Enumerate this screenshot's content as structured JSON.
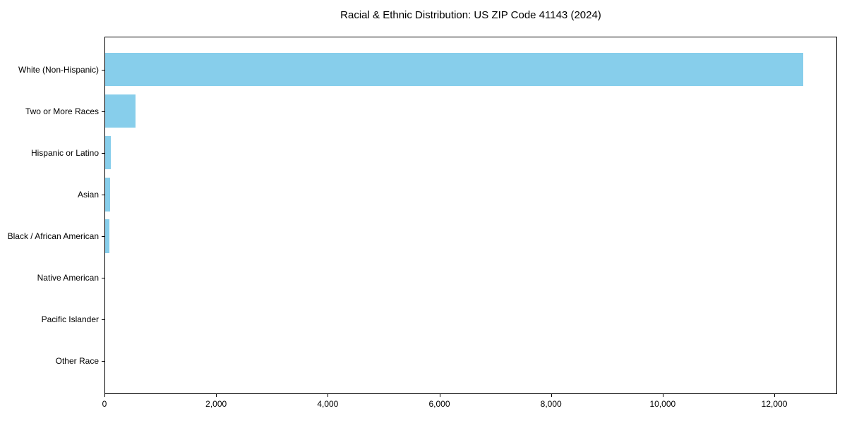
{
  "chart_data": {
    "type": "bar",
    "orientation": "horizontal",
    "title": "Racial & Ethnic Distribution: US ZIP Code 41143 (2024)",
    "xlabel": "",
    "ylabel": "",
    "categories": [
      "White (Non-Hispanic)",
      "Two or More Races",
      "Hispanic or Latino",
      "Asian",
      "Black / African American",
      "Native American",
      "Pacific Islander",
      "Other Race"
    ],
    "values": [
      12500,
      544,
      100,
      85,
      78,
      0,
      0,
      0
    ],
    "xlim": [
      0,
      13125
    ],
    "x_ticks": [
      0,
      2000,
      4000,
      6000,
      8000,
      10000,
      12000
    ],
    "x_tick_labels": [
      "0",
      "2,000",
      "4,000",
      "6,000",
      "8,000",
      "10,000",
      "12,000"
    ],
    "bar_color": "#87CEEB",
    "text_color": "#000000",
    "background_color": "#FFFFFF",
    "grid": false,
    "legend": null
  }
}
